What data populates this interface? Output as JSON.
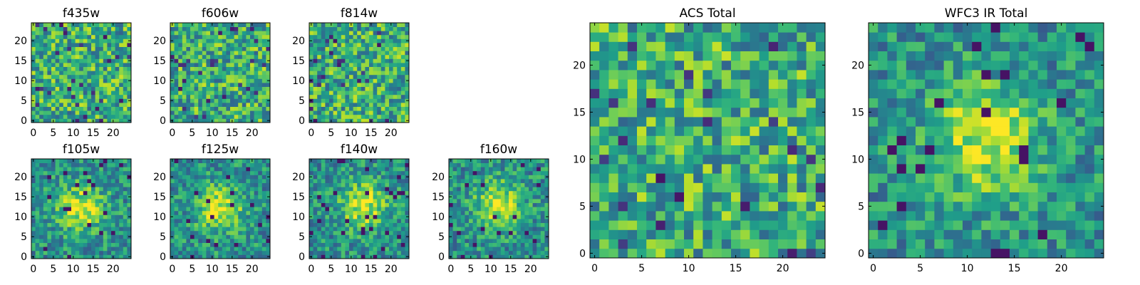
{
  "figure": {
    "background": "#ffffff"
  },
  "chart_data": [
    {
      "type": "heatmap",
      "title": "f435w",
      "grid_size": 25,
      "xlim": [
        0,
        24
      ],
      "ylim": [
        0,
        24
      ],
      "xticks": [
        0,
        5,
        10,
        15,
        20
      ],
      "yticks": [
        0,
        5,
        10,
        15,
        20
      ],
      "pattern": "noise",
      "colormap": "viridis"
    },
    {
      "type": "heatmap",
      "title": "f606w",
      "grid_size": 25,
      "xlim": [
        0,
        24
      ],
      "ylim": [
        0,
        24
      ],
      "xticks": [
        0,
        5,
        10,
        15,
        20
      ],
      "yticks": [
        0,
        5,
        10,
        15,
        20
      ],
      "pattern": "noise",
      "colormap": "viridis"
    },
    {
      "type": "heatmap",
      "title": "f814w",
      "grid_size": 25,
      "xlim": [
        0,
        24
      ],
      "ylim": [
        0,
        24
      ],
      "xticks": [
        0,
        5,
        10,
        15,
        20
      ],
      "yticks": [
        0,
        5,
        10,
        15,
        20
      ],
      "pattern": "noise",
      "colormap": "viridis"
    },
    {
      "type": "heatmap",
      "title": "f105w",
      "grid_size": 25,
      "xlim": [
        0,
        24
      ],
      "ylim": [
        0,
        24
      ],
      "xticks": [
        0,
        5,
        10,
        15,
        20
      ],
      "yticks": [
        0,
        5,
        10,
        15,
        20
      ],
      "pattern": "central source",
      "source_center": [
        12,
        12
      ],
      "colormap": "viridis"
    },
    {
      "type": "heatmap",
      "title": "f125w",
      "grid_size": 25,
      "xlim": [
        0,
        24
      ],
      "ylim": [
        0,
        24
      ],
      "xticks": [
        0,
        5,
        10,
        15,
        20
      ],
      "yticks": [
        0,
        5,
        10,
        15,
        20
      ],
      "pattern": "central source",
      "source_center": [
        12,
        12
      ],
      "colormap": "viridis"
    },
    {
      "type": "heatmap",
      "title": "f140w",
      "grid_size": 25,
      "xlim": [
        0,
        24
      ],
      "ylim": [
        0,
        24
      ],
      "xticks": [
        0,
        5,
        10,
        15,
        20
      ],
      "yticks": [
        0,
        5,
        10,
        15,
        20
      ],
      "pattern": "central source",
      "source_center": [
        13,
        13
      ],
      "colormap": "viridis"
    },
    {
      "type": "heatmap",
      "title": "f160w",
      "grid_size": 25,
      "xlim": [
        0,
        24
      ],
      "ylim": [
        0,
        24
      ],
      "xticks": [
        0,
        5,
        10,
        15,
        20
      ],
      "yticks": [
        0,
        5,
        10,
        15,
        20
      ],
      "pattern": "central source",
      "source_center": [
        12,
        13
      ],
      "colormap": "viridis"
    },
    {
      "type": "heatmap",
      "title": "ACS Total",
      "grid_size": 25,
      "xlim": [
        0,
        24
      ],
      "ylim": [
        0,
        24
      ],
      "xticks": [
        0,
        5,
        10,
        15,
        20
      ],
      "yticks": [
        0,
        5,
        10,
        15,
        20
      ],
      "pattern": "noise",
      "colormap": "viridis"
    },
    {
      "type": "heatmap",
      "title": "WFC3 IR Total",
      "grid_size": 25,
      "xlim": [
        0,
        24
      ],
      "ylim": [
        0,
        24
      ],
      "xticks": [
        0,
        5,
        10,
        15,
        20
      ],
      "yticks": [
        0,
        5,
        10,
        15,
        20
      ],
      "pattern": "central source",
      "source_center": [
        12,
        12
      ],
      "colormap": "viridis"
    }
  ]
}
